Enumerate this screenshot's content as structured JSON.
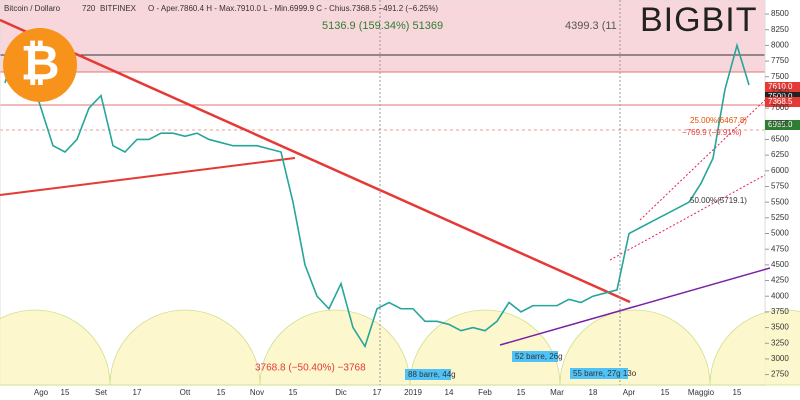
{
  "header": {
    "symbol": "Bitcoin / Dollaro",
    "interval": "720",
    "exchange": "BITFINEX",
    "ohlc": "O - Aper.7860.4  H - Max.7910.0  L - Min.6999.9  C - Chius.7368.5  −491.2 (−6.25%)"
  },
  "logo": "BIGBIT",
  "annotations": {
    "gain": "5136.9 (159.34%) 51369",
    "gain2": "4399.3 (11",
    "drop": "3768.8 (−50.40%) −3768",
    "pullback": "−769.9 (−9.91%)",
    "fib25": "25.00%(6467.8)",
    "fib50": "50.00%(5719.1)",
    "bars1": "88 barre, 44g",
    "bars2": "52 barre, 26g",
    "bars3": "55 barre, 27g 13o"
  },
  "price_labels": [
    "7610.0",
    "7500.0",
    "7368.5",
    "6985.0"
  ],
  "chart_data": {
    "type": "line",
    "color": "#26a69a",
    "categories": [
      null,
      null,
      null,
      "Ago",
      null,
      "15",
      null,
      null,
      "Set",
      null,
      null,
      "17",
      null,
      null,
      null,
      "Ott",
      null,
      null,
      "15",
      null,
      null,
      "Nov",
      null,
      null,
      "15",
      null,
      null,
      null,
      "Dic",
      null,
      null,
      "17",
      null,
      null,
      "2019",
      null,
      null,
      "14",
      null,
      null,
      "Feb",
      null,
      null,
      "15",
      null,
      null,
      "Mar",
      null,
      null,
      "18",
      null,
      null,
      "Apr",
      null,
      null,
      "15",
      null,
      null,
      "Maggio",
      null,
      null,
      "15",
      null
    ],
    "values": [
      7400,
      8100,
      7600,
      7000,
      6400,
      6300,
      6500,
      7000,
      7200,
      6400,
      6300,
      6500,
      6500,
      6600,
      6600,
      6550,
      6600,
      6500,
      6450,
      6400,
      6400,
      6400,
      6350,
      6300,
      5500,
      4500,
      4000,
      3800,
      4200,
      3500,
      3200,
      3800,
      3900,
      3800,
      3800,
      3600,
      3600,
      3550,
      3450,
      3500,
      3450,
      3600,
      3900,
      3750,
      3850,
      3850,
      3850,
      3950,
      3900,
      4000,
      4050,
      4100,
      5000,
      5100,
      5200,
      5300,
      5400,
      5500,
      5800,
      6200,
      7300,
      8000,
      7368.5
    ],
    "ylim": [
      2600,
      8700
    ],
    "yticks": [
      2750,
      3000,
      3250,
      3500,
      3750,
      4000,
      4250,
      4500,
      4750,
      5000,
      5250,
      5500,
      5750,
      6000,
      6250,
      6500,
      6750,
      7000,
      7250,
      7500,
      7750,
      8000,
      8250,
      8500
    ]
  }
}
